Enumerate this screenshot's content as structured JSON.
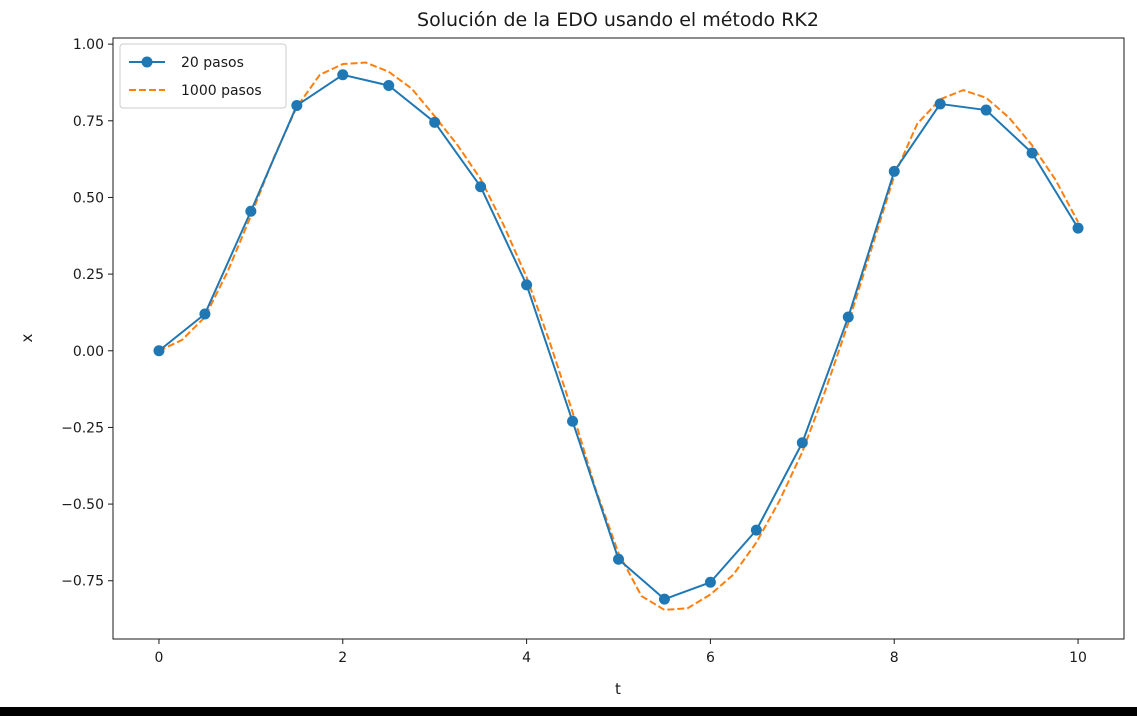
{
  "chart_data": {
    "type": "line",
    "title": "Solución de la EDO usando el método RK2",
    "xlabel": "t",
    "ylabel": "x",
    "xlim": [
      -0.5,
      10.5
    ],
    "ylim": [
      -0.94,
      1.02
    ],
    "xticks": [
      0,
      2,
      4,
      6,
      8,
      10
    ],
    "xtick_labels": [
      "0",
      "2",
      "4",
      "6",
      "8",
      "10"
    ],
    "yticks": [
      1.0,
      0.75,
      0.5,
      0.25,
      0.0,
      -0.25,
      -0.5,
      -0.75
    ],
    "ytick_labels": [
      "1.00",
      "0.75",
      "0.50",
      "0.25",
      "0.00",
      "−0.25",
      "−0.50",
      "−0.75"
    ],
    "grid": false,
    "legend_position": "top-left",
    "series": [
      {
        "name": "20 pasos",
        "color": "#1f77b4",
        "style": "solid",
        "marker": "circle",
        "x": [
          0,
          0.5,
          1,
          1.5,
          2,
          2.5,
          3,
          3.5,
          4,
          4.5,
          5,
          5.5,
          6,
          6.5,
          7,
          7.5,
          8,
          8.5,
          9,
          9.5,
          10
        ],
        "y": [
          0.0,
          0.12,
          0.455,
          0.8,
          0.9,
          0.865,
          0.745,
          0.535,
          0.215,
          -0.23,
          -0.68,
          -0.81,
          -0.755,
          -0.585,
          -0.3,
          0.11,
          0.585,
          0.805,
          0.785,
          0.645,
          0.4
        ]
      },
      {
        "name": "1000 pasos",
        "color": "#ff7f0e",
        "style": "dashed",
        "marker": "none",
        "x": [
          0,
          0.25,
          0.5,
          0.75,
          1,
          1.25,
          1.5,
          1.75,
          2,
          2.25,
          2.5,
          2.75,
          3,
          3.25,
          3.5,
          3.75,
          4,
          4.25,
          4.5,
          4.75,
          5,
          5.25,
          5.5,
          5.75,
          6,
          6.25,
          6.5,
          6.75,
          7,
          7.25,
          7.5,
          7.75,
          8,
          8.25,
          8.5,
          8.75,
          9,
          9.25,
          9.5,
          9.75,
          10
        ],
        "y": [
          0.0,
          0.035,
          0.11,
          0.26,
          0.44,
          0.63,
          0.795,
          0.9,
          0.935,
          0.94,
          0.91,
          0.855,
          0.765,
          0.67,
          0.56,
          0.41,
          0.24,
          0.03,
          -0.2,
          -0.45,
          -0.66,
          -0.8,
          -0.845,
          -0.84,
          -0.795,
          -0.73,
          -0.625,
          -0.49,
          -0.33,
          -0.13,
          0.09,
          0.33,
          0.57,
          0.74,
          0.82,
          0.85,
          0.825,
          0.76,
          0.67,
          0.56,
          0.42
        ]
      }
    ]
  }
}
